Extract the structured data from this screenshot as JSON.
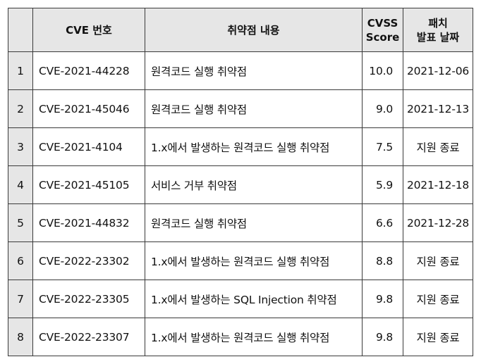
{
  "table": {
    "headers": {
      "index": "",
      "cve_id": "CVE 번호",
      "description": "취약점 내용",
      "cvss_line1": "CVSS",
      "cvss_line2": "Score",
      "patch_line1": "패치",
      "patch_line2": "발표 날짜"
    },
    "rows": [
      {
        "index": "1",
        "cve_id": "CVE-2021-44228",
        "description": "원격코드 실행 취약점",
        "score": "10.0",
        "patch_date": "2021-12-06"
      },
      {
        "index": "2",
        "cve_id": "CVE-2021-45046",
        "description": "원격코드 실행 취약점",
        "score": "9.0",
        "patch_date": "2021-12-13"
      },
      {
        "index": "3",
        "cve_id": "CVE-2021-4104",
        "description": "1.x에서 발생하는 원격코드 실행 취약점",
        "score": "7.5",
        "patch_date": "지원 종료"
      },
      {
        "index": "4",
        "cve_id": "CVE-2021-45105",
        "description": "서비스 거부 취약점",
        "score": "5.9",
        "patch_date": "2021-12-18"
      },
      {
        "index": "5",
        "cve_id": "CVE-2021-44832",
        "description": "원격코드 실행 취약점",
        "score": "6.6",
        "patch_date": "2021-12-28"
      },
      {
        "index": "6",
        "cve_id": "CVE-2022-23302",
        "description": "1.x에서 발생하는 원격코드 실행 취약점",
        "score": "8.8",
        "patch_date": "지원 종료"
      },
      {
        "index": "7",
        "cve_id": "CVE-2022-23305",
        "description": "1.x에서 발생하는 SQL Injection 취약점",
        "score": "9.8",
        "patch_date": "지원 종료"
      },
      {
        "index": "8",
        "cve_id": "CVE-2022-23307",
        "description": "1.x에서 발생하는 원격코드 실행 취약점",
        "score": "9.8",
        "patch_date": "지원 종료"
      }
    ]
  },
  "colors": {
    "header_bg": "#e6e6e6",
    "border": "#3a3a3a",
    "text": "#111111"
  }
}
